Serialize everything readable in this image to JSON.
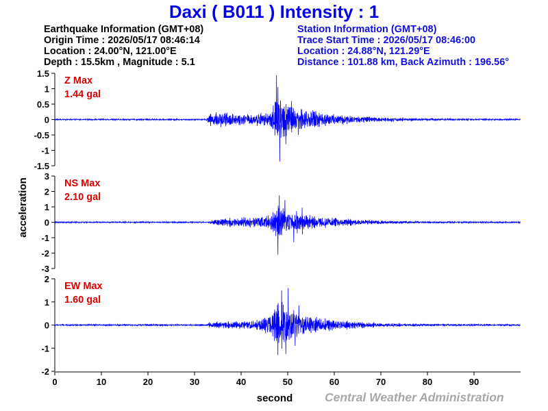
{
  "title": "Daxi  ( B011 )  Intensity : 1",
  "earthquake_info": {
    "heading": "Earthquake Information  (GMT+08)",
    "origin_time": "Origin Time : 2026/05/17 08:46:14",
    "location": "Location : 24.00°N, 121.00°E",
    "depth_magnitude": "Depth : 15.5km , Magnitude : 5.1"
  },
  "station_info": {
    "heading": "Station Information  (GMT+08)",
    "trace_start": "Trace Start Time : 2026/05/17 08:46:00",
    "location": "Location : 24.88°N, 121.29°E",
    "distance": "Distance : 101.88 km, Back Azimuth : 196.56°"
  },
  "credit": "Central Weather Administration",
  "colors": {
    "trace": "#0000ff",
    "max_label": "#dd0000",
    "title": "#0000ee",
    "credit": "#a8a8a8"
  },
  "chart_data": {
    "type": "line",
    "xlabel": "second",
    "ylabel": "acceleration",
    "xlim": [
      0,
      100
    ],
    "xticks": [
      0,
      10,
      20,
      30,
      40,
      50,
      60,
      70,
      80,
      90
    ],
    "grid": false,
    "panels": [
      {
        "component": "Z",
        "max_label": "Z Max",
        "max_value": "1.44 gal",
        "ylim": [
          -1.5,
          1.5
        ],
        "yticks": [
          1.5,
          1,
          0.5,
          0,
          -0.5,
          -1,
          -1.5
        ],
        "y_tick_labels": [
          "1.5",
          "1",
          "0.5",
          "0",
          "-0.5",
          "-1",
          "-1.5"
        ],
        "noise": 0.015,
        "envelope": [
          [
            0,
            0.02
          ],
          [
            32.5,
            0.03
          ],
          [
            33.5,
            0.3
          ],
          [
            36,
            0.38
          ],
          [
            40,
            0.25
          ],
          [
            45,
            0.3
          ],
          [
            46.5,
            0.4
          ],
          [
            47.5,
            1.35
          ],
          [
            49,
            0.95
          ],
          [
            52,
            0.55
          ],
          [
            55,
            0.45
          ],
          [
            60,
            0.28
          ],
          [
            66,
            0.16
          ],
          [
            72,
            0.09
          ],
          [
            80,
            0.05
          ],
          [
            100,
            0.03
          ]
        ],
        "peaks": [
          [
            47.6,
            1.44
          ],
          [
            48.3,
            -1.36
          ],
          [
            47.9,
            1.05
          ],
          [
            49.6,
            -0.8
          ],
          [
            50.8,
            0.6
          ],
          [
            52.3,
            -0.5
          ]
        ]
      },
      {
        "component": "NS",
        "max_label": "NS Max",
        "max_value": "2.10 gal",
        "ylim": [
          -3,
          3
        ],
        "yticks": [
          3,
          2,
          1,
          0,
          -1,
          -2,
          -3
        ],
        "y_tick_labels": [
          "3",
          "2",
          "1",
          "0",
          "-1",
          "-2",
          "-3"
        ],
        "noise": 0.03,
        "envelope": [
          [
            0,
            0.04
          ],
          [
            33,
            0.05
          ],
          [
            34,
            0.3
          ],
          [
            38,
            0.45
          ],
          [
            42,
            0.45
          ],
          [
            45,
            0.6
          ],
          [
            46.5,
            0.9
          ],
          [
            47.5,
            1.7
          ],
          [
            50,
            1.3
          ],
          [
            53,
            0.9
          ],
          [
            56,
            0.6
          ],
          [
            60,
            0.4
          ],
          [
            66,
            0.22
          ],
          [
            72,
            0.12
          ],
          [
            80,
            0.07
          ],
          [
            100,
            0.05
          ]
        ],
        "peaks": [
          [
            48.2,
            1.75
          ],
          [
            47.9,
            -2.1
          ],
          [
            49.4,
            1.45
          ],
          [
            51.3,
            -1.3
          ],
          [
            53.1,
            0.95
          ]
        ]
      },
      {
        "component": "EW",
        "max_label": "EW Max",
        "max_value": "1.60 gal",
        "ylim": [
          -2,
          2
        ],
        "yticks": [
          2,
          1,
          0,
          -1,
          -2
        ],
        "y_tick_labels": [
          "2",
          "1",
          "0",
          "-1",
          "-2"
        ],
        "noise": 0.02,
        "envelope": [
          [
            0,
            0.03
          ],
          [
            32.5,
            0.04
          ],
          [
            33.5,
            0.18
          ],
          [
            37,
            0.22
          ],
          [
            42,
            0.28
          ],
          [
            45,
            0.45
          ],
          [
            46.5,
            0.75
          ],
          [
            47.5,
            1.25
          ],
          [
            51,
            1.05
          ],
          [
            54,
            0.6
          ],
          [
            58,
            0.4
          ],
          [
            64,
            0.22
          ],
          [
            70,
            0.12
          ],
          [
            80,
            0.06
          ],
          [
            100,
            0.04
          ]
        ],
        "peaks": [
          [
            50.1,
            1.6
          ],
          [
            48.7,
            1.5
          ],
          [
            47.9,
            -1.3
          ],
          [
            49.6,
            -1.25
          ],
          [
            51.6,
            -0.9
          ],
          [
            52.4,
            0.85
          ]
        ]
      }
    ]
  }
}
